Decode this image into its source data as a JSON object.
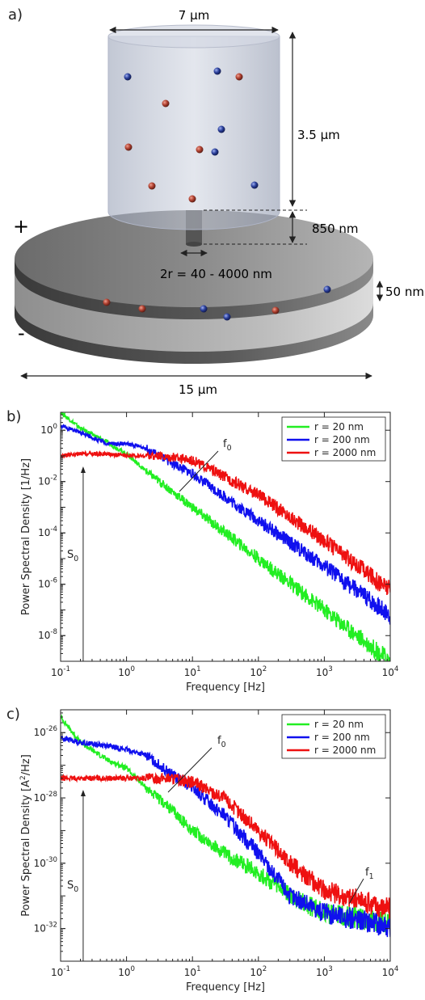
{
  "figure_a": {
    "label": "a)",
    "width_top": "7 µm",
    "height_cyl": "3.5 µm",
    "pore_length": "850 nm",
    "pore_radius": "2r = 40 - 4000 nm",
    "membrane_thickness": "50 nm",
    "width_bottom": "15 µm",
    "plus": "+",
    "minus": "-",
    "ion_colors": {
      "cation": "#b04030",
      "anion": "#2a3f9a"
    }
  },
  "chart_data": [
    {
      "panel": "b)",
      "type": "line",
      "xlabel": "Frequency [Hz]",
      "ylabel": "Power Spectral Density [1/Hz]",
      "xscale": "log",
      "yscale": "log",
      "xlim": [
        0.1,
        10000
      ],
      "ylim": [
        1e-09,
        5
      ],
      "xticks": [
        "10",
        "10",
        "10",
        "10",
        "10",
        "10"
      ],
      "xtick_exp": [
        "-1",
        "0",
        "1",
        "2",
        "3",
        "4"
      ],
      "yticks": [
        "10",
        "10",
        "10",
        "10",
        "10"
      ],
      "ytick_exp": [
        "0",
        "-2",
        "-4",
        "-6",
        "-8"
      ],
      "legend": "top-right",
      "series": [
        {
          "name": "r = 20 nm",
          "color": "#22ee22",
          "x": [
            0.1,
            0.2,
            0.5,
            1,
            2,
            5,
            10,
            100,
            1000,
            10000
          ],
          "y": [
            5,
            1.2,
            0.35,
            0.12,
            0.025,
            0.004,
            0.001,
            1e-05,
            1e-07,
            1e-09
          ]
        },
        {
          "name": "r = 200 nm",
          "color": "#1010ee",
          "x": [
            0.1,
            0.2,
            0.5,
            1,
            2,
            5,
            10,
            100,
            1000,
            10000
          ],
          "y": [
            1.5,
            0.8,
            0.3,
            0.3,
            0.2,
            0.05,
            0.02,
            0.0003,
            5e-06,
            6e-08
          ]
        },
        {
          "name": "r = 2000 nm",
          "color": "#ee1010",
          "x": [
            0.1,
            0.2,
            0.5,
            1,
            2,
            5,
            10,
            100,
            1000,
            10000
          ],
          "y": [
            0.1,
            0.12,
            0.12,
            0.1,
            0.1,
            0.09,
            0.07,
            0.003,
            5e-05,
            6e-07
          ]
        }
      ],
      "annotations": {
        "f0": "f",
        "f0_sub": "0",
        "s0": "S",
        "s0_sub": "0"
      }
    },
    {
      "panel": "c)",
      "type": "line",
      "xlabel": "Frequency [Hz]",
      "ylabel": "Power Spectral Density [A",
      "ylabel_sup": "2",
      "ylabel_end": "/Hz]",
      "xscale": "log",
      "yscale": "log",
      "xlim": [
        0.1,
        10000
      ],
      "ylim": [
        1e-33,
        5e-26
      ],
      "xticks": [
        "10",
        "10",
        "10",
        "10",
        "10",
        "10"
      ],
      "xtick_exp": [
        "-1",
        "0",
        "1",
        "2",
        "3",
        "4"
      ],
      "yticks": [
        "10",
        "10",
        "10",
        "10"
      ],
      "ytick_exp": [
        "-26",
        "-28",
        "-30",
        "-32"
      ],
      "legend": "top-right",
      "series": [
        {
          "name": "r = 20 nm",
          "color": "#22ee22",
          "x": [
            0.1,
            0.2,
            0.5,
            1,
            2,
            5,
            10,
            30,
            100,
            300,
            1000,
            10000
          ],
          "y": [
            3e-26,
            5e-27,
            1.5e-27,
            8e-28,
            2e-28,
            4e-29,
            1e-29,
            2e-30,
            5e-31,
            1e-31,
            3e-32,
            1.5e-32
          ]
        },
        {
          "name": "r = 200 nm",
          "color": "#1010ee",
          "x": [
            0.1,
            0.2,
            0.5,
            1,
            2,
            5,
            10,
            30,
            100,
            300,
            1000,
            10000
          ],
          "y": [
            7e-27,
            5e-27,
            4e-27,
            3e-27,
            2e-27,
            5e-28,
            2e-28,
            3e-29,
            2e-30,
            1e-31,
            3e-32,
            1.2e-32
          ]
        },
        {
          "name": "r = 2000 nm",
          "color": "#ee1010",
          "x": [
            0.1,
            0.2,
            0.5,
            1,
            2,
            5,
            10,
            30,
            100,
            300,
            1000,
            10000
          ],
          "y": [
            4e-28,
            4e-28,
            4e-28,
            4e-28,
            4e-28,
            4e-28,
            3e-28,
            1e-28,
            1e-29,
            1e-30,
            1.5e-31,
            4e-32
          ]
        }
      ],
      "annotations": {
        "f0": "f",
        "f0_sub": "0",
        "s0": "S",
        "s0_sub": "0",
        "f1": "f",
        "f1_sub": "1"
      }
    }
  ]
}
